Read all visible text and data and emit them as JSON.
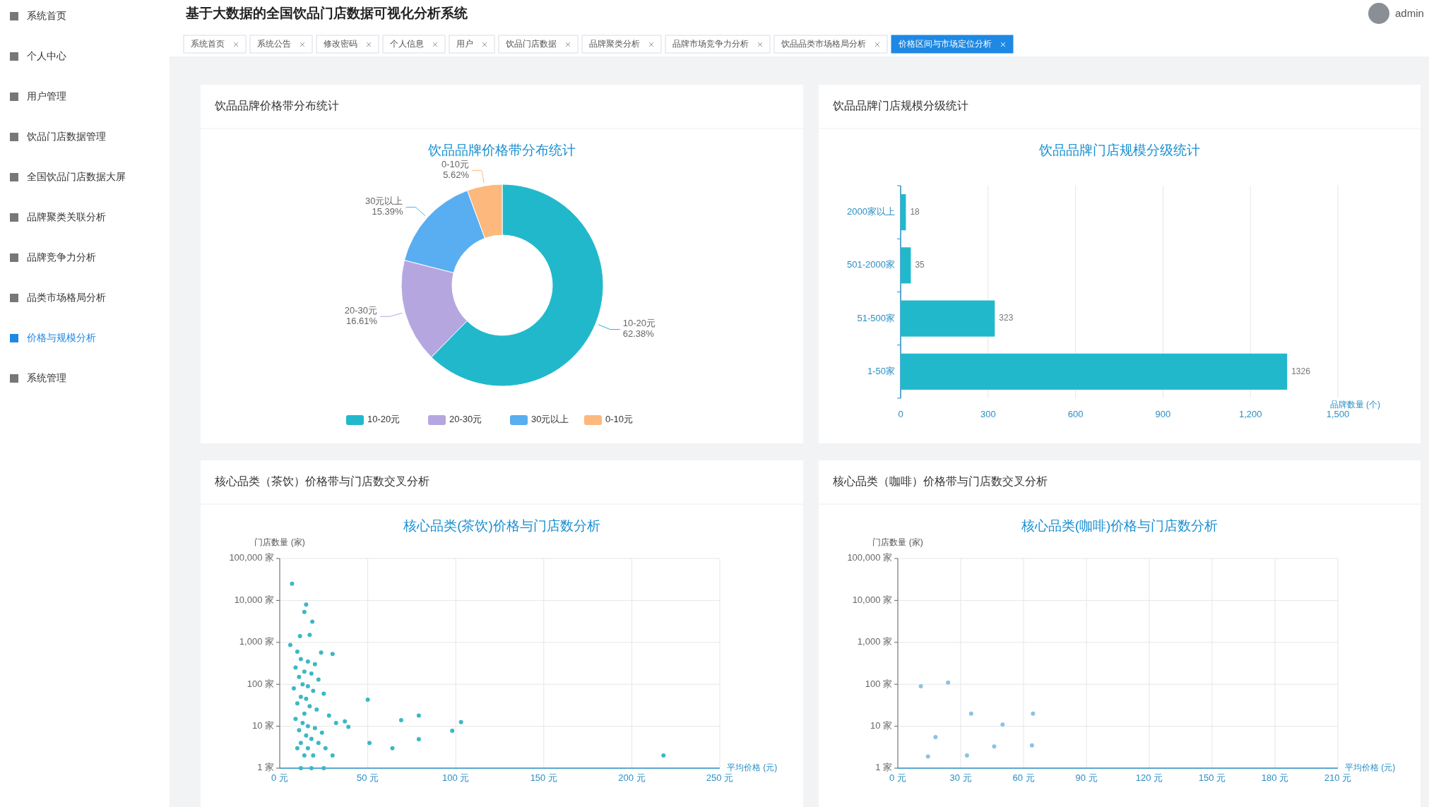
{
  "chart_data": [
    {
      "type": "other",
      "annotations": [
        "系统首页",
        "个人中心",
        "用户管理",
        "饮品门店数据管理",
        "全国饮品门店数据大屏",
        "品牌聚类关联分析",
        "品牌竞争力分析",
        "品类市场格局分析",
        "价格与规模分析",
        "系统管理"
      ]
    },
    {
      "type": "other",
      "title": "基于大数据的全国饮品门店数据可视化分析系统",
      "annotations": [
        "系统首页",
        "系统公告",
        "修改密码",
        "个人信息",
        "用户",
        "饮品门店数据",
        "品牌聚类分析",
        "品牌市场竞争力分析",
        "饮品品类市场格局分析",
        "价格区间与市场定位分析",
        "admin"
      ]
    },
    {
      "type": "donut",
      "subtitle": "饮品品牌价格带分布统计",
      "title": "饮品品牌价格带分布统计",
      "categories": [
        "10-20元",
        "20-30元",
        "30元以上",
        "0-10元"
      ],
      "values": [
        62.38,
        16.61,
        15.39,
        5.62
      ],
      "value_labels": [
        "62.38%",
        "16.61%",
        "15.39%",
        "5.62%"
      ],
      "colors": [
        "#22b8cc",
        "#b6a6e0",
        "#58aef0",
        "#fdb87d"
      ],
      "legend": "bottom"
    },
    {
      "type": "bar",
      "orientation": "horizontal",
      "subtitle": "饮品品牌门店规模分级统计",
      "title": "饮品品牌门店规模分级统计",
      "categories": [
        "2000家以上",
        "501-2000家",
        "51-500家",
        "1-50家"
      ],
      "values": [
        18,
        35,
        323,
        1326
      ],
      "color": "#22b8cc",
      "xlim": [
        0,
        1500
      ],
      "xticks": [
        0,
        300,
        600,
        900,
        {
          "value": 1200,
          "label": "1,200"
        },
        {
          "value": 1500,
          "label": "1,500"
        }
      ],
      "xlabel": "品牌数量 (个)",
      "data_labels": true,
      "grid": "x"
    },
    {
      "type": "scatter",
      "subtitle": "核心品类（茶饮）价格带与门店数交叉分析",
      "title": "核心品类(茶饮)价格与门店数分析",
      "xlabel": "平均价格 (元)",
      "ylabel": "门店数量 (家)",
      "log": "y",
      "color": "#3bb8c4",
      "grid": true,
      "x": [
        7,
        15,
        14,
        18.5,
        17,
        11.5,
        6,
        30,
        23.5,
        10,
        12,
        16,
        20,
        9,
        14,
        18,
        11,
        22,
        13,
        16,
        8,
        19,
        25,
        12,
        15,
        10,
        17,
        21,
        14,
        28,
        9,
        13,
        16,
        20,
        11,
        24,
        15,
        18,
        12,
        22,
        10,
        16,
        26,
        14,
        19,
        30,
        12,
        18,
        25,
        32,
        37,
        39,
        50,
        51,
        64,
        69,
        79,
        79,
        98,
        103,
        218
      ],
      "values": [
        25000,
        8000,
        5300,
        3100,
        1500,
        1400,
        870,
        530,
        570,
        600,
        400,
        350,
        300,
        250,
        200,
        180,
        150,
        130,
        100,
        90,
        80,
        70,
        60,
        50,
        45,
        35,
        30,
        25,
        20,
        18,
        15,
        12,
        10,
        9,
        8,
        7,
        6,
        5,
        4,
        4,
        3,
        3,
        3,
        2,
        2,
        2,
        1,
        1,
        1,
        12,
        13,
        9.7,
        43,
        4,
        3,
        14,
        18,
        4.9,
        7.8,
        12.5,
        2
      ],
      "xlim": [
        0,
        250
      ],
      "xticks": [
        {
          "value": 0,
          "label": "0 元"
        },
        {
          "value": 50,
          "label": "50 元"
        },
        {
          "value": 100,
          "label": "100 元"
        },
        {
          "value": 150,
          "label": "150 元"
        },
        {
          "value": 200,
          "label": "200 元"
        },
        {
          "value": 250,
          "label": "250 元"
        }
      ],
      "ylim": [
        1,
        100000
      ],
      "yticks": [
        {
          "value": 1,
          "label": "1 家"
        },
        {
          "value": 10,
          "label": "10 家"
        },
        {
          "value": 100,
          "label": "100 家"
        },
        {
          "value": 1000,
          "label": "1,000 家"
        },
        {
          "value": 10000,
          "label": "10,000 家"
        },
        {
          "value": 100000,
          "label": "100,000 家"
        }
      ]
    },
    {
      "type": "scatter",
      "subtitle": "核心品类（咖啡）价格带与门店数交叉分析",
      "title": "核心品类(咖啡)价格与门店数分析",
      "xlabel": "平均价格 (元)",
      "ylabel": "门店数量 (家)",
      "log": "y",
      "color": "#8cc3e0",
      "grid": true,
      "x": [
        35,
        64.5,
        50,
        14.4,
        18,
        46,
        64,
        24,
        11,
        33
      ],
      "values": [
        20,
        20,
        11,
        1.9,
        5.5,
        3.3,
        3.5,
        110,
        90,
        2
      ],
      "xlim": [
        0,
        210
      ],
      "xticks": [
        {
          "value": 0,
          "label": "0 元"
        },
        {
          "value": 30,
          "label": "30 元"
        },
        {
          "value": 60,
          "label": "60 元"
        },
        {
          "value": 90,
          "label": "90 元"
        },
        {
          "value": 120,
          "label": "120 元"
        },
        {
          "value": 150,
          "label": "150 元"
        },
        {
          "value": 180,
          "label": "180 元"
        },
        {
          "value": 210,
          "label": "210 元"
        }
      ],
      "ylim": [
        1,
        100000
      ],
      "yticks": [
        {
          "value": 1,
          "label": "1 家"
        },
        {
          "value": 10,
          "label": "10 家"
        },
        {
          "value": 100,
          "label": "100 家"
        },
        {
          "value": 1000,
          "label": "1,000 家"
        },
        {
          "value": 10000,
          "label": "10,000 家"
        },
        {
          "value": 100000,
          "label": "100,000 家"
        }
      ]
    }
  ]
}
